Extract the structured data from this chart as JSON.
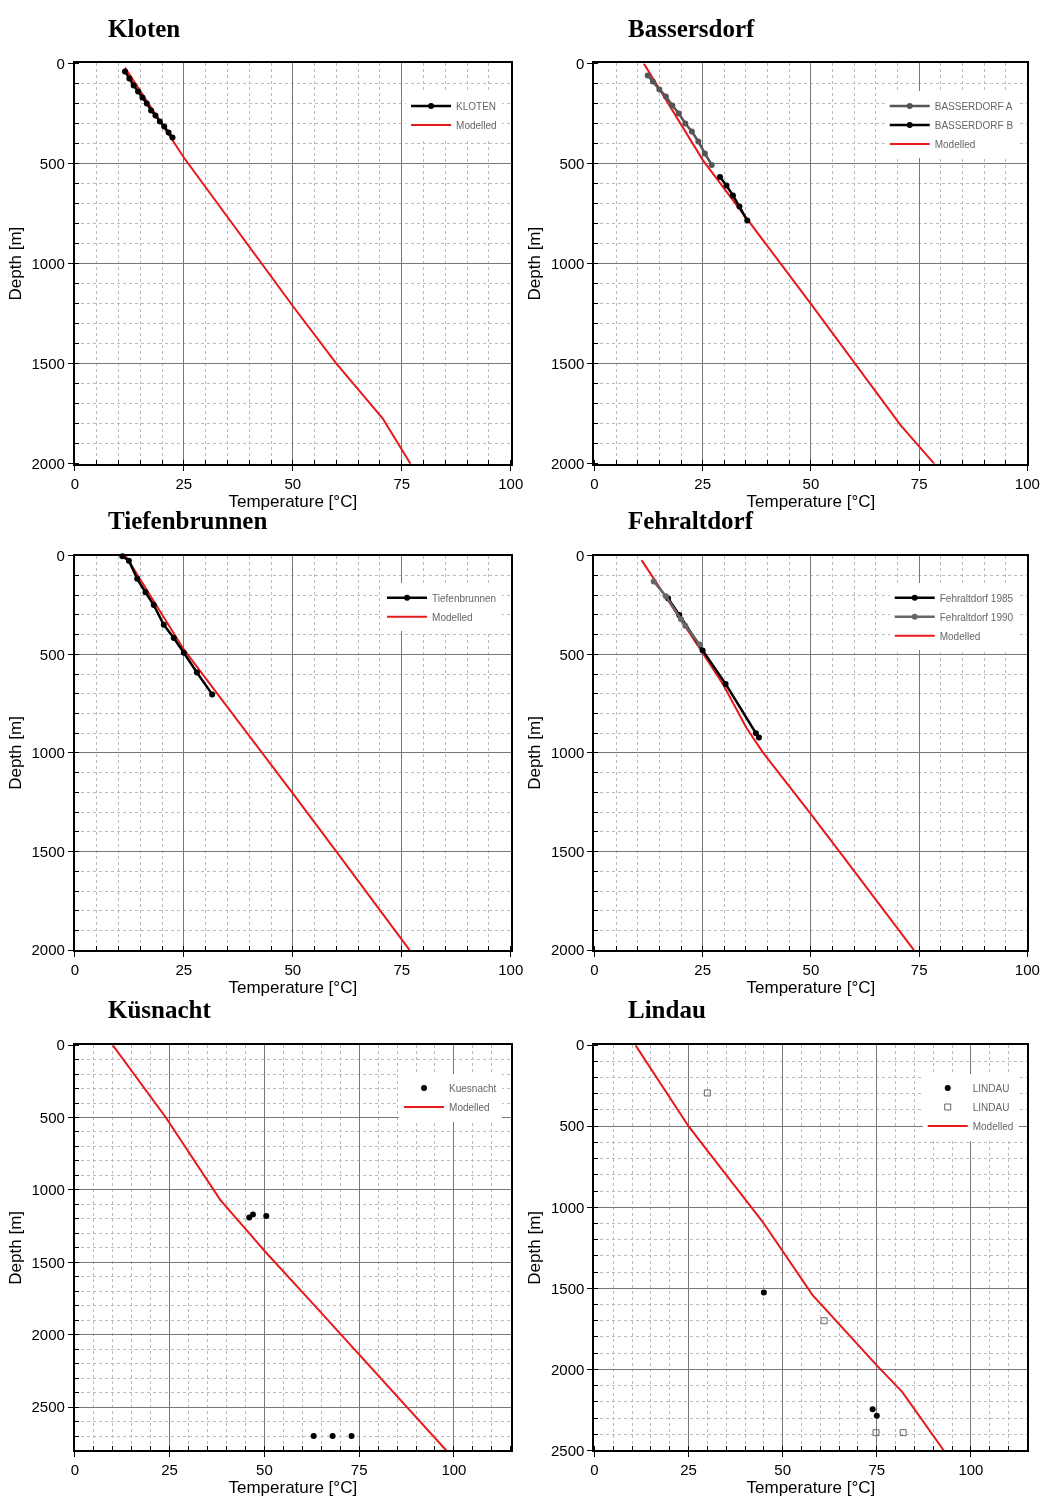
{
  "chart_data": [
    {
      "type": "line",
      "title": "Kloten",
      "xlabel": "Temperature [°C]",
      "ylabel": "Depth [m]",
      "xlim": [
        0,
        100
      ],
      "ylim": [
        2000,
        0
      ],
      "xticks": [
        0,
        25,
        50,
        75,
        100
      ],
      "yticks": [
        0,
        500,
        1000,
        1500,
        2000
      ],
      "grid": true,
      "legend": "top right",
      "series": [
        {
          "name": "KLOTEN",
          "color": "#000000",
          "marker": "circle",
          "x": [
            11.5,
            12.5,
            13.5,
            14.5,
            15.5,
            16.5,
            17.5,
            18.5,
            19.5,
            20.5,
            21.5,
            22.4
          ],
          "values": [
            40,
            75,
            110,
            140,
            170,
            200,
            235,
            260,
            290,
            315,
            345,
            370
          ]
        },
        {
          "name": "Modelled",
          "color": "#e8191a",
          "marker": "none",
          "x": [
            11.5,
            25,
            50,
            60,
            70.6,
            77
          ],
          "values": [
            21,
            470,
            1212,
            1500,
            1773,
            2000
          ]
        }
      ]
    },
    {
      "type": "line",
      "title": "Bassersdorf",
      "xlabel": "Temperature [°C]",
      "ylabel": "Depth [m]",
      "xlim": [
        0,
        100
      ],
      "ylim": [
        2000,
        0
      ],
      "xticks": [
        0,
        25,
        50,
        75,
        100
      ],
      "yticks": [
        0,
        500,
        1000,
        1500,
        2000
      ],
      "grid": true,
      "legend": "top right",
      "series": [
        {
          "name": "BASSERDORF A",
          "color": "#555555",
          "marker": "circle",
          "x": [
            12.3,
            13.5,
            15,
            16.5,
            18,
            19.5,
            21,
            22.5,
            24,
            25.5,
            27.1
          ],
          "values": [
            60,
            90,
            130,
            165,
            210,
            250,
            300,
            340,
            390,
            450,
            507
          ]
        },
        {
          "name": "BASSERDORF B",
          "color": "#000000",
          "marker": "circle",
          "x": [
            29,
            30.5,
            32,
            33.5,
            35.3
          ],
          "values": [
            567,
            610,
            660,
            715,
            785
          ]
        },
        {
          "name": "Modelled",
          "color": "#e8191a",
          "marker": "none",
          "x": [
            11.4,
            25,
            50,
            60.2,
            70.7,
            78.5
          ],
          "values": [
            0,
            482,
            1201,
            1500,
            1807,
            2000
          ]
        }
      ]
    },
    {
      "type": "line",
      "title": "Tiefenbrunnen",
      "xlabel": "Temperature [°C]",
      "ylabel": "Depth [m]",
      "xlim": [
        0,
        100
      ],
      "ylim": [
        2000,
        0
      ],
      "xticks": [
        0,
        25,
        50,
        75,
        100
      ],
      "yticks": [
        0,
        500,
        1000,
        1500,
        2000
      ],
      "grid": true,
      "legend": "top right",
      "series": [
        {
          "name": "Tiefenbrunnen",
          "color": "#000000",
          "marker": "circle",
          "x": [
            10.9,
            12.4,
            14.3,
            16.2,
            18.1,
            20.4,
            22.7,
            25,
            28,
            31.5
          ],
          "values": [
            3,
            25,
            117,
            185,
            250,
            350,
            417,
            492,
            592,
            703
          ]
        },
        {
          "name": "Modelled",
          "color": "#e8191a",
          "marker": "none",
          "x": [
            11.7,
            25,
            50,
            60,
            76.8
          ],
          "values": [
            3,
            475,
            1205,
            1500,
            2000
          ]
        }
      ]
    },
    {
      "type": "line",
      "title": "Fehraltdorf",
      "xlabel": "Temperature [°C]",
      "ylabel": "Depth [m]",
      "xlim": [
        0,
        100
      ],
      "ylim": [
        2000,
        0
      ],
      "xticks": [
        0,
        25,
        50,
        75,
        100
      ],
      "yticks": [
        0,
        500,
        1000,
        1500,
        2000
      ],
      "grid": true,
      "legend": "top right",
      "series": [
        {
          "name": "Fehraltdorf 1985",
          "color": "#000000",
          "marker": "circle",
          "x": [
            17,
            19.6,
            25,
            30.3,
            37.3,
            38
          ],
          "values": [
            215,
            300,
            480,
            650,
            900,
            921
          ]
        },
        {
          "name": "Fehraltdorf 1990",
          "color": "#666666",
          "marker": "circle",
          "x": [
            13.7,
            16.5,
            20,
            21,
            24.3
          ],
          "values": [
            130,
            205,
            322,
            355,
            450
          ]
        },
        {
          "name": "Modelled",
          "color": "#e8191a",
          "marker": "none",
          "x": [
            10.9,
            25,
            29.8,
            35.1,
            38.9,
            50,
            56.6,
            73.8
          ],
          "values": [
            22,
            493,
            655,
            872,
            997,
            1310,
            1500,
            2000
          ]
        }
      ]
    },
    {
      "type": "line",
      "title": "Küsnacht",
      "xlabel": "Temperature [°C]",
      "ylabel": "Depth [m]",
      "xlim": [
        0,
        115
      ],
      "ylim": [
        2800,
        0
      ],
      "xticks": [
        0,
        25,
        50,
        75,
        100
      ],
      "yticks": [
        0,
        500,
        1000,
        1500,
        2000,
        2500
      ],
      "grid": true,
      "legend": "top right",
      "series": [
        {
          "name": "Kuesnacht",
          "type": "scatter",
          "color": "#000000",
          "marker": "circle",
          "x": [
            46,
            47,
            50.5,
            63,
            68,
            73
          ],
          "values": [
            1190,
            1170,
            1180,
            2700,
            2700,
            2700
          ]
        },
        {
          "name": "Modelled",
          "color": "#e8191a",
          "marker": "none",
          "x": [
            10,
            24,
            38.4,
            50,
            64,
            98
          ],
          "values": [
            0,
            500,
            1070,
            1420,
            1820,
            2800
          ]
        }
      ]
    },
    {
      "type": "line",
      "title": "Lindau",
      "xlabel": "Temperature [°C]",
      "ylabel": "Depth [m]",
      "xlim": [
        0,
        115
      ],
      "ylim": [
        2500,
        0
      ],
      "xticks": [
        0,
        25,
        50,
        75,
        100
      ],
      "yticks": [
        0,
        500,
        1000,
        1500,
        2000,
        2500
      ],
      "grid": true,
      "legend": "top right",
      "series": [
        {
          "name": "LINDAU",
          "type": "scatter",
          "color": "#000000",
          "marker": "circle",
          "x": [
            45,
            73.9,
            75
          ],
          "values": [
            1525,
            2245,
            2285
          ]
        },
        {
          "name": "LINDAU",
          "type": "scatter",
          "color": "#666666",
          "marker": "square",
          "x": [
            30,
            61,
            74.8,
            82
          ],
          "values": [
            295,
            1700,
            2390,
            2390
          ]
        },
        {
          "name": "Modelled",
          "color": "#e8191a",
          "marker": "none",
          "x": [
            10.9,
            25,
            30,
            45,
            57.9,
            75,
            81.8,
            92.8
          ],
          "values": [
            0,
            500,
            650,
            1100,
            1540,
            1975,
            2140,
            2500
          ]
        }
      ]
    }
  ]
}
